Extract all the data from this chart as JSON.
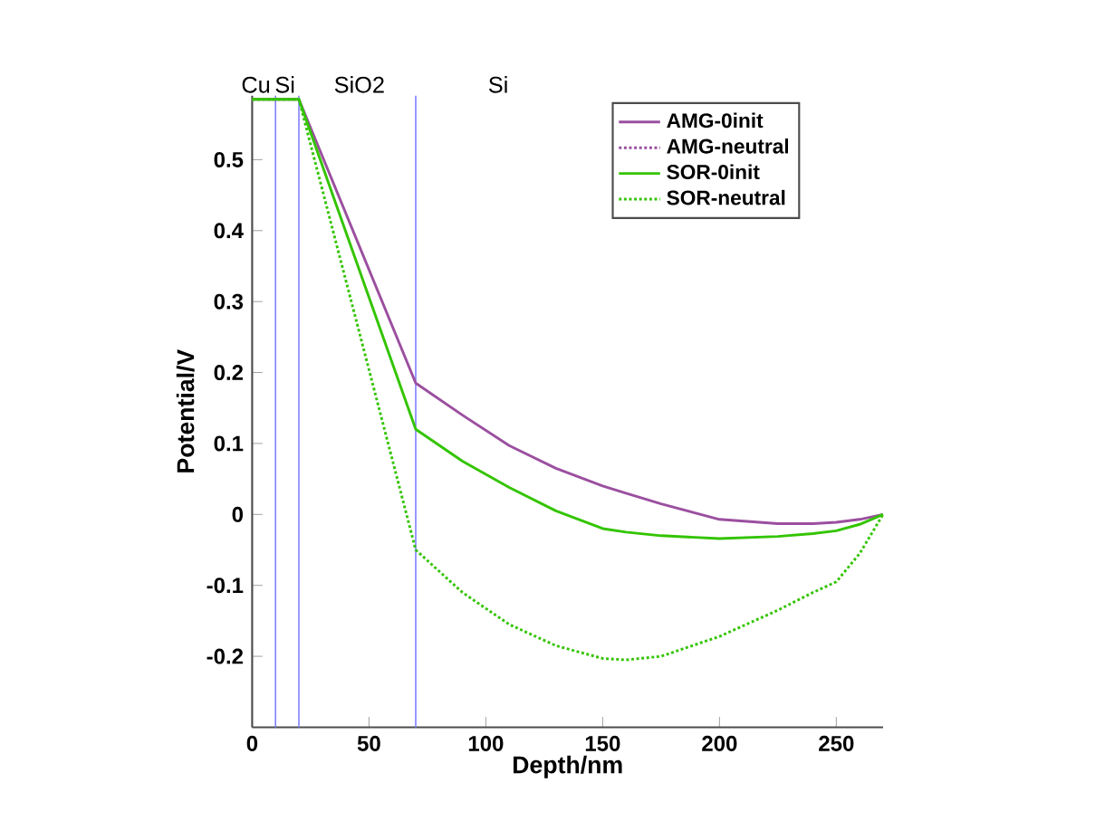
{
  "chart_data": {
    "type": "line",
    "xlabel": "Depth/nm",
    "ylabel": "Potential/V",
    "x": [
      0,
      10,
      20,
      70,
      90,
      110,
      130,
      150,
      160,
      175,
      200,
      225,
      240,
      250,
      260,
      270
    ],
    "series": [
      {
        "name": "AMG-0init",
        "color": "#9b4f9f",
        "line_style": "solid",
        "values": [
          0.585,
          0.585,
          0.585,
          0.185,
          0.14,
          0.097,
          0.065,
          0.04,
          0.03,
          0.015,
          -0.007,
          -0.013,
          -0.013,
          -0.011,
          -0.007,
          0
        ]
      },
      {
        "name": "AMG-neutral",
        "color": "#9b4f9f",
        "line_style": "dotted",
        "values": [
          null,
          null,
          null,
          null,
          null,
          null,
          null,
          null,
          null,
          null,
          null,
          null,
          null,
          null,
          null,
          null
        ]
      },
      {
        "name": "SOR-0init",
        "color": "#33c400",
        "line_style": "solid",
        "values": [
          0.585,
          0.585,
          0.585,
          0.12,
          0.075,
          0.038,
          0.005,
          -0.02,
          -0.025,
          -0.03,
          -0.034,
          -0.031,
          -0.027,
          -0.023,
          -0.014,
          0
        ]
      },
      {
        "name": "SOR-neutral",
        "color": "#33c400",
        "line_style": "dotted",
        "values": [
          0.585,
          0.585,
          0.585,
          -0.05,
          -0.11,
          -0.155,
          -0.185,
          -0.203,
          -0.205,
          -0.2,
          -0.172,
          -0.135,
          -0.11,
          -0.095,
          -0.055,
          0
        ]
      }
    ],
    "ref_lines": [
      {
        "axis": "x",
        "value": 10,
        "color": "#8080ff"
      },
      {
        "axis": "x",
        "value": 20,
        "color": "#8080ff"
      },
      {
        "axis": "x",
        "value": 70,
        "color": "#8080ff"
      }
    ],
    "annotations": [
      "Cu",
      "Si",
      "SiO2",
      "Si"
    ],
    "xlim": [
      0,
      270
    ],
    "ylim": [
      -0.3,
      0.59
    ],
    "xticks": [
      0,
      50,
      100,
      150,
      200,
      250
    ],
    "yticks": [
      -0.2,
      -0.1,
      0,
      0.1,
      0.2,
      0.3,
      0.4,
      0.5
    ],
    "grid": false,
    "legend": "top right",
    "marker": "none"
  }
}
